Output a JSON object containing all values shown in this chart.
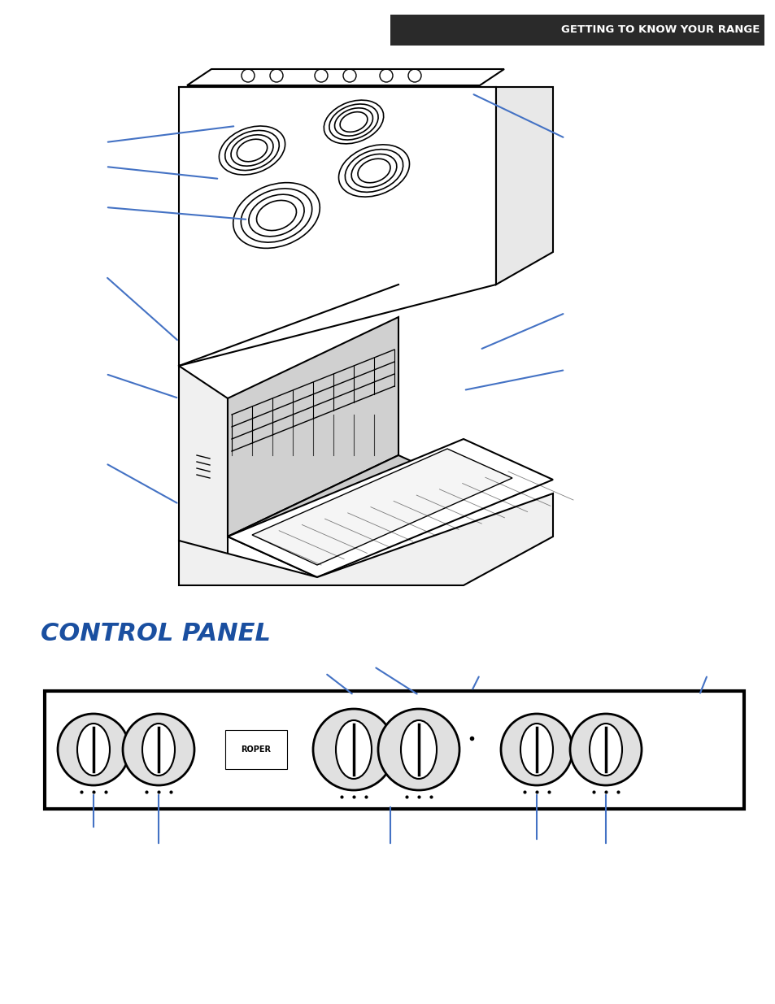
{
  "title_bar_text": "GETTING TO KNOW YOUR RANGE",
  "title_bar_color": "#2a2a2a",
  "title_bar_text_color": "#ffffff",
  "control_panel_title": "CONTROL PANEL",
  "control_panel_title_color": "#1a4fa0",
  "background_color": "#ffffff",
  "line_color": "#4472c4",
  "drawing_color": "#000000",
  "fig_width": 9.54,
  "fig_height": 12.35
}
